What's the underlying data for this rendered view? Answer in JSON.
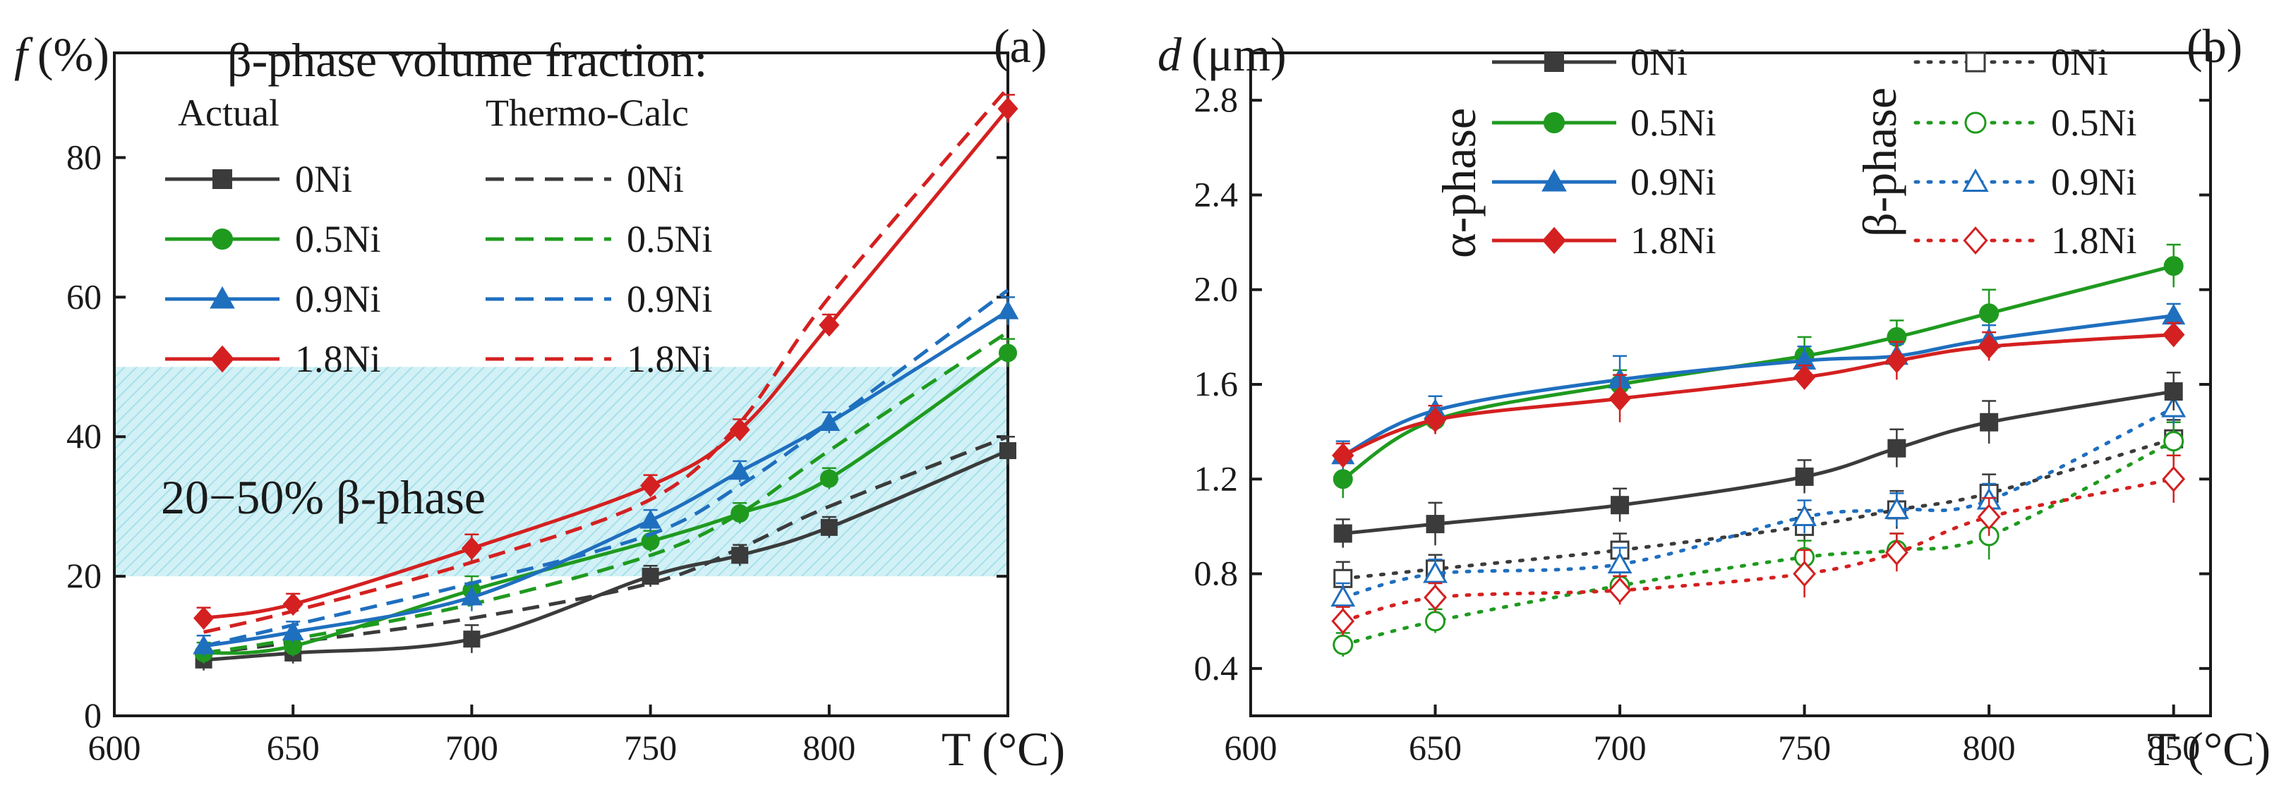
{
  "colors": {
    "0Ni": "#3b3b3b",
    "0.5Ni": "#1f9a1f",
    "0.9Ni": "#1f6fbf",
    "1.8Ni": "#d42020",
    "band": "#c6ecf2"
  },
  "chart_data": [
    {
      "type": "line",
      "panel_label": "(a)",
      "title": "β-phase volume fraction:",
      "ylabel_symbol": "f",
      "ylabel_unit": "(%)",
      "xlabel": "T (°C)",
      "xlim": [
        600,
        850
      ],
      "ylim": [
        0,
        95
      ],
      "x_ticks": [
        600,
        650,
        700,
        750,
        800
      ],
      "y_ticks": [
        0,
        20,
        40,
        60,
        80
      ],
      "legend_headers": {
        "actual": "Actual",
        "calc": "Thermo-Calc"
      },
      "band": {
        "y_range": [
          20,
          50
        ],
        "x_range": [
          600,
          850
        ],
        "label": "20−50% β-phase"
      },
      "x": [
        625,
        650,
        700,
        750,
        775,
        800,
        850
      ],
      "series": [
        {
          "name": "0Ni",
          "color_key": "0Ni",
          "marker": "square",
          "values": [
            8,
            9,
            11,
            20,
            23,
            27,
            38
          ],
          "errors": [
            1.5,
            1.5,
            2,
            1.5,
            1.5,
            1.5,
            2
          ],
          "calc": [
            9,
            10.5,
            14,
            19,
            24,
            30,
            40
          ]
        },
        {
          "name": "0.5Ni",
          "color_key": "0.5Ni",
          "marker": "circle",
          "values": [
            9,
            10,
            18,
            25,
            29,
            34,
            52
          ],
          "errors": [
            1.5,
            1.5,
            2,
            1.5,
            1.5,
            1.5,
            2
          ],
          "calc": [
            9,
            11,
            16,
            23,
            29,
            38,
            55
          ]
        },
        {
          "name": "0.9Ni",
          "color_key": "0.9Ni",
          "marker": "triangle",
          "values": [
            10,
            12,
            17,
            28,
            35,
            42,
            58
          ],
          "errors": [
            1.5,
            1.5,
            2,
            1.5,
            1.5,
            1.5,
            2
          ],
          "calc": [
            10,
            13,
            19,
            26,
            33,
            42,
            61
          ]
        },
        {
          "name": "1.8Ni",
          "color_key": "1.8Ni",
          "marker": "diamond",
          "values": [
            14,
            16,
            24,
            33,
            41,
            56,
            87
          ],
          "errors": [
            1.5,
            1.5,
            2,
            1.5,
            1.5,
            1.5,
            2
          ],
          "calc": [
            12,
            15,
            22,
            31,
            42,
            60,
            90
          ]
        }
      ]
    },
    {
      "type": "line",
      "panel_label": "(b)",
      "ylabel_symbol": "d",
      "ylabel_unit": "(μm)",
      "xlabel": "T (°C)",
      "xlim": [
        600,
        860
      ],
      "ylim": [
        0.2,
        3.0
      ],
      "x_ticks": [
        600,
        650,
        700,
        750,
        800,
        850
      ],
      "y_ticks": [
        0.4,
        0.8,
        1.2,
        1.6,
        2.0,
        2.4,
        2.8
      ],
      "alpha_label": "α-phase",
      "beta_label": "β-phase",
      "x": [
        625,
        650,
        700,
        750,
        775,
        800,
        850
      ],
      "alpha_series": [
        {
          "name": "0Ni",
          "color_key": "0Ni",
          "marker": "square",
          "values": [
            0.97,
            1.01,
            1.09,
            1.21,
            1.33,
            1.44,
            1.57
          ],
          "errors": [
            0.06,
            0.09,
            0.07,
            0.07,
            0.08,
            0.09,
            0.08
          ]
        },
        {
          "name": "0.5Ni",
          "color_key": "0.5Ni",
          "marker": "circle",
          "values": [
            1.2,
            1.45,
            1.6,
            1.72,
            1.8,
            1.9,
            2.1
          ],
          "errors": [
            0.08,
            0.06,
            0.06,
            0.08,
            0.07,
            0.1,
            0.09
          ]
        },
        {
          "name": "0.9Ni",
          "color_key": "0.9Ni",
          "marker": "triangle",
          "values": [
            1.3,
            1.49,
            1.62,
            1.7,
            1.72,
            1.79,
            1.89
          ],
          "errors": [
            0.06,
            0.06,
            0.1,
            0.06,
            0.05,
            0.06,
            0.05
          ]
        },
        {
          "name": "1.8Ni",
          "color_key": "1.8Ni",
          "marker": "diamond",
          "values": [
            1.3,
            1.45,
            1.54,
            1.63,
            1.7,
            1.76,
            1.81
          ],
          "errors": [
            0.05,
            0.06,
            0.1,
            0.05,
            0.08,
            0.06,
            0.05
          ]
        }
      ],
      "beta_series": [
        {
          "name": "0Ni",
          "color_key": "0Ni",
          "marker": "square",
          "values": [
            0.78,
            0.82,
            0.9,
            1.0,
            1.07,
            1.14,
            1.37
          ],
          "errors": [
            0.07,
            0.06,
            0.07,
            0.07,
            0.08,
            0.08,
            0.08
          ]
        },
        {
          "name": "0.5Ni",
          "color_key": "0.5Ni",
          "marker": "circle",
          "values": [
            0.5,
            0.6,
            0.75,
            0.87,
            0.9,
            0.96,
            1.36
          ],
          "errors": [
            0.05,
            0.05,
            0.06,
            0.07,
            0.07,
            0.1,
            0.08
          ]
        },
        {
          "name": "0.9Ni",
          "color_key": "0.9Ni",
          "marker": "triangle",
          "values": [
            0.7,
            0.8,
            0.84,
            1.04,
            1.07,
            1.11,
            1.5
          ],
          "errors": [
            0.06,
            0.06,
            0.07,
            0.07,
            0.07,
            0.07,
            0.07
          ]
        },
        {
          "name": "1.8Ni",
          "color_key": "1.8Ni",
          "marker": "diamond",
          "values": [
            0.6,
            0.7,
            0.73,
            0.8,
            0.89,
            1.04,
            1.2
          ],
          "errors": [
            0.06,
            0.06,
            0.06,
            0.1,
            0.08,
            0.08,
            0.1
          ]
        }
      ]
    }
  ]
}
